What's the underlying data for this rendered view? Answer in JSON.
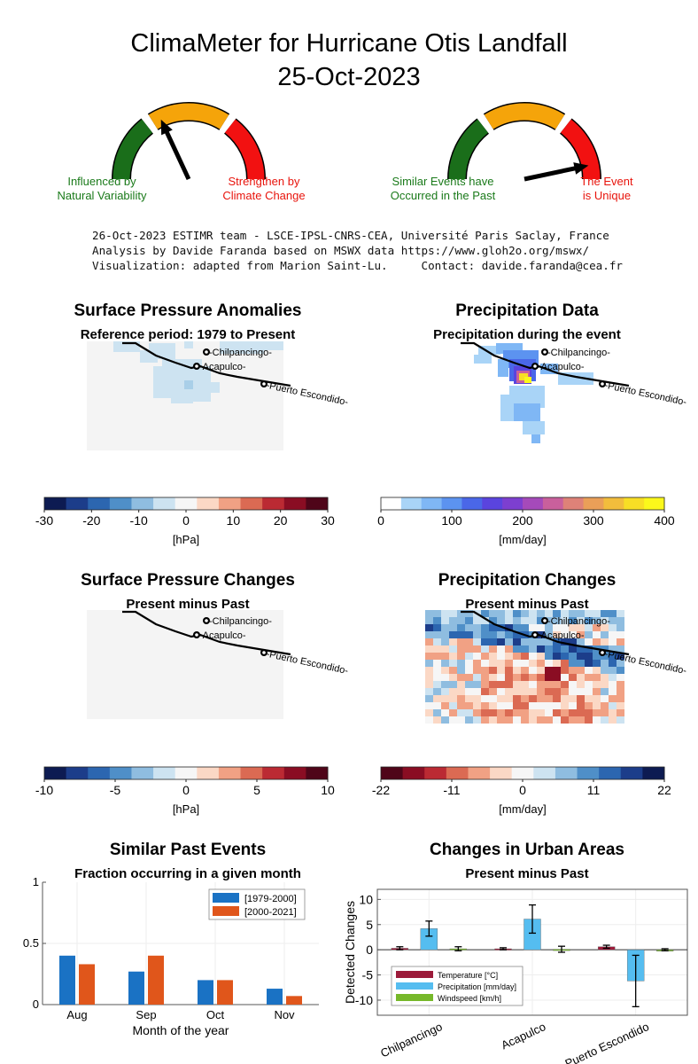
{
  "title": {
    "line1": "ClimaMeter for Hurricane Otis Landfall",
    "line2": "25-Oct-2023"
  },
  "gauges": [
    {
      "left_label": [
        "Influenced by",
        "Natural Variability"
      ],
      "right_label": [
        "Strengthen by",
        "Climate Change"
      ],
      "left_color": "#1a7a1a",
      "right_color": "#e8140c",
      "arc_colors": [
        "#1a6e1a",
        "#f5a40a",
        "#f21111"
      ],
      "needle_angle_deg": 115
    },
    {
      "left_label": [
        "Similar Events have",
        "Occurred in the Past"
      ],
      "right_label": [
        "The Event",
        "is Unique"
      ],
      "left_color": "#1a7a1a",
      "right_color": "#e8140c",
      "arc_colors": [
        "#1a6e1a",
        "#f5a40a",
        "#f21111"
      ],
      "needle_angle_deg": 12
    }
  ],
  "credits": [
    "26-Oct-2023 ESTIMR team - LSCE-IPSL-CNRS-CEA, Université Paris Saclay, France",
    "Analysis by Davide Faranda based on MSWX data https://www.gloh2o.org/mswx/",
    "Visualization: adapted from Marion Saint-Lu.     Contact: davide.faranda@cea.fr"
  ],
  "cities": [
    "-Chilpancingo-",
    "-Acapulco-",
    "-Puerto Escondido-"
  ],
  "maps": {
    "pressure_anomalies": {
      "title": "Surface Pressure Anomalies",
      "subtitle": "Reference period: 1979 to Present",
      "colorbar_ticks": [
        "-30",
        "-20",
        "-10",
        "0",
        "10",
        "20",
        "30"
      ],
      "unit": "[hPa]",
      "colors": [
        "#0d1b52",
        "#1c3d8a",
        "#2c66b0",
        "#4f8fc8",
        "#8fbde0",
        "#cde3f1",
        "#f6f6f6",
        "#fbd8c5",
        "#f1a184",
        "#db6a53",
        "#bb2a33",
        "#8a0d23",
        "#4f0519"
      ]
    },
    "precipitation": {
      "title": "Precipitation Data",
      "subtitle": "Precipitation during the event",
      "colorbar_ticks": [
        "0",
        "100",
        "200",
        "300",
        "400"
      ],
      "unit": "[mm/day]",
      "colors": [
        "#ffffff",
        "#a9d4f7",
        "#7fb7f5",
        "#5c93f0",
        "#4a67e8",
        "#5a44de",
        "#7d3fd0",
        "#a54aba",
        "#c9609c",
        "#de8278",
        "#ea9f58",
        "#f2bd3c",
        "#f8de25",
        "#fbf81b"
      ]
    },
    "pressure_changes": {
      "title": "Surface Pressure Changes",
      "subtitle": "Present minus Past",
      "colorbar_ticks": [
        "-10",
        "-5",
        "0",
        "5",
        "10"
      ],
      "unit": "[hPa]",
      "colors": [
        "#0d1b52",
        "#1c3d8a",
        "#2c66b0",
        "#4f8fc8",
        "#8fbde0",
        "#cde3f1",
        "#f6f6f6",
        "#fbd8c5",
        "#f1a184",
        "#db6a53",
        "#bb2a33",
        "#8a0d23",
        "#4f0519"
      ]
    },
    "precipitation_changes": {
      "title": "Precipitation Changes",
      "subtitle": "Present minus Past",
      "colorbar_ticks": [
        "-22",
        "-11",
        "0",
        "11",
        "22"
      ],
      "unit": "[mm/day]",
      "colors": [
        "#4f0519",
        "#8a0d23",
        "#bb2a33",
        "#db6a53",
        "#f1a184",
        "#fbd8c5",
        "#f6f6f6",
        "#cde3f1",
        "#8fbde0",
        "#4f8fc8",
        "#2c66b0",
        "#1c3d8a",
        "#0d1b52"
      ]
    }
  },
  "chart_data": [
    {
      "type": "bar",
      "title": "Similar Past Events",
      "subtitle": "Fraction occurring in a given month",
      "xlabel": "Month of the year",
      "ylabel": "",
      "categories": [
        "Aug",
        "Sep",
        "Oct",
        "Nov"
      ],
      "series": [
        {
          "name": "[1979-2000]",
          "color": "#1a72c4",
          "values": [
            0.4,
            0.27,
            0.2,
            0.13
          ]
        },
        {
          "name": "[2000-2021]",
          "color": "#e0561b",
          "values": [
            0.33,
            0.4,
            0.2,
            0.07
          ]
        }
      ],
      "ylim": [
        0,
        1
      ],
      "yticks": [
        "0",
        "0.5",
        "1"
      ],
      "grid": true,
      "legend": "top-right"
    },
    {
      "type": "bar",
      "title": "Changes in Urban Areas",
      "subtitle": "Present minus Past",
      "xlabel": "",
      "ylabel": "Detected Changes",
      "categories": [
        "Chilpancingo",
        "Acapulco",
        "Puerto Escondido"
      ],
      "series": [
        {
          "name": "Temperature [°C]",
          "color": "#9c1b3a",
          "values": [
            0.3,
            0.2,
            0.6
          ],
          "err": [
            0.3,
            0.2,
            0.3
          ]
        },
        {
          "name": "Precipitation [mm/day]",
          "color": "#55bdf0",
          "values": [
            4.2,
            6.1,
            -6.2
          ],
          "err": [
            1.5,
            2.8,
            5.1
          ]
        },
        {
          "name": "Windspeed [km/h]",
          "color": "#76b82a",
          "values": [
            0.2,
            0.1,
            0.0
          ],
          "err": [
            0.4,
            0.6,
            0.2
          ]
        }
      ],
      "ylim": [
        -13,
        12
      ],
      "yticks": [
        "10",
        "5",
        "0",
        "-5",
        "-10"
      ],
      "grid": true,
      "legend": "bottom-left"
    }
  ]
}
